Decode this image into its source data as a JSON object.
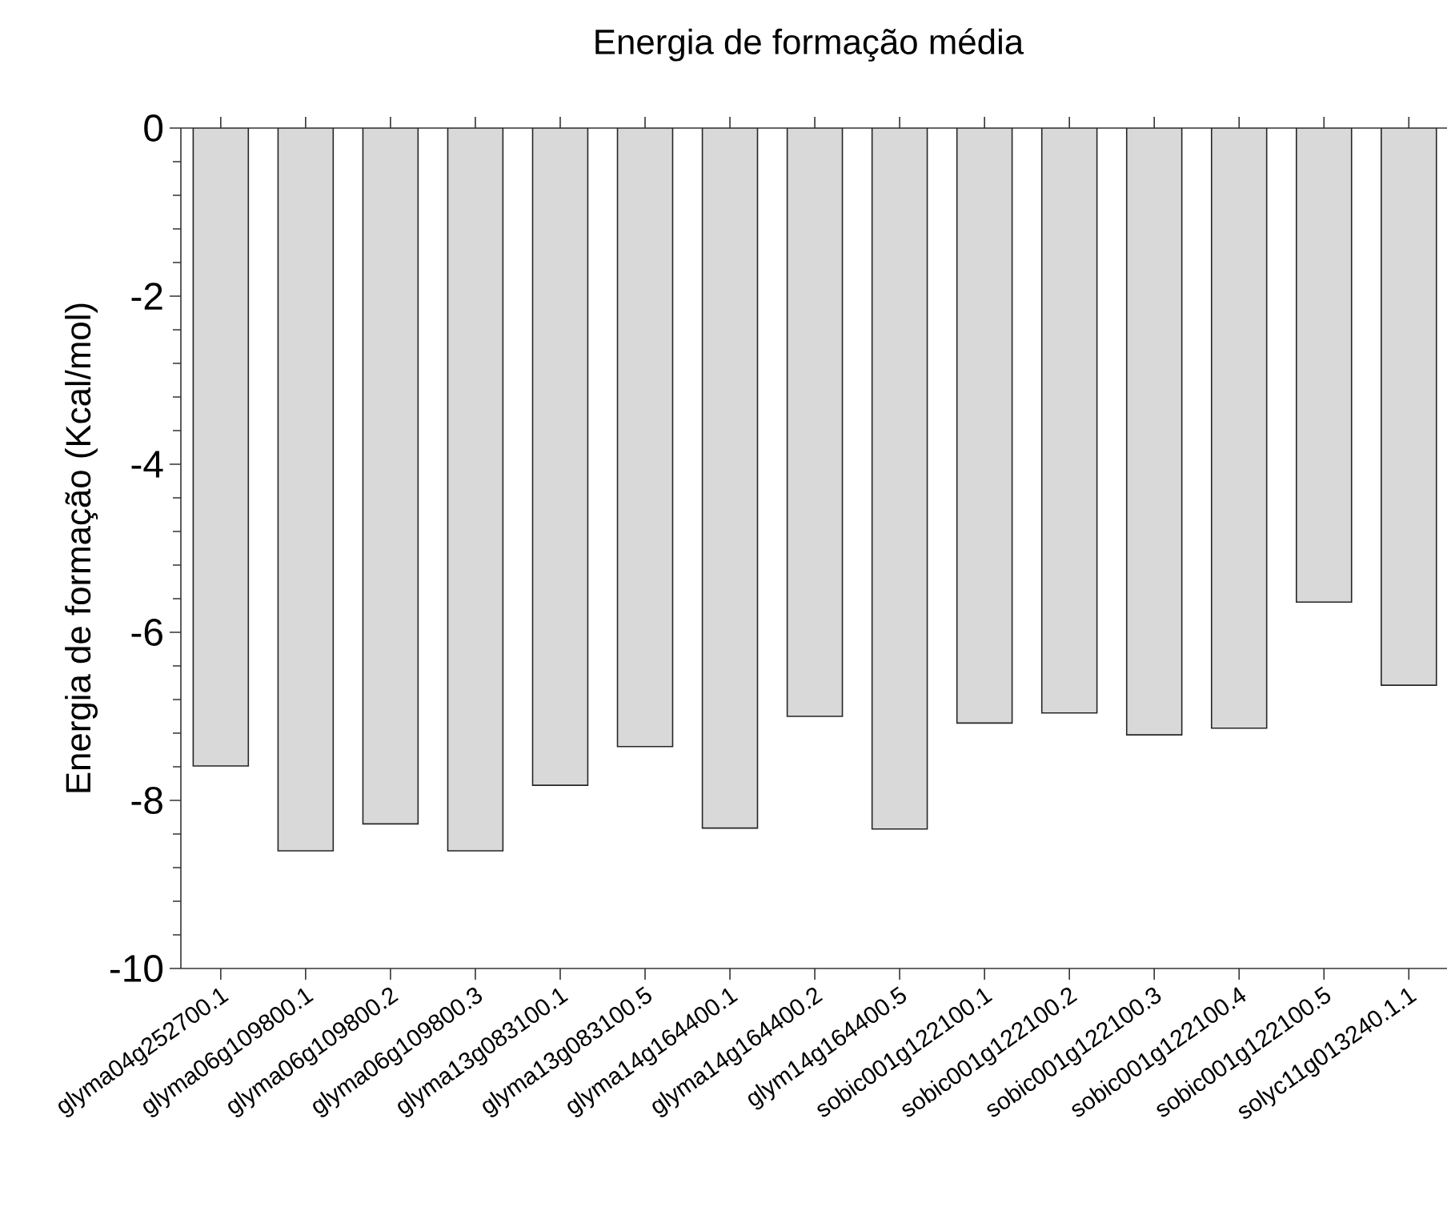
{
  "chart_data": {
    "type": "bar",
    "title": "Energia de formação média",
    "ylabel": "Energia de formação (Kcal/mol)",
    "categories": [
      "glyma04g252700.1",
      "glyma06g109800.1",
      "glyma06g109800.2",
      "glyma06g109800.3",
      "glyma13g083100.1",
      "glyma13g083100.5",
      "glyma14g164400.1",
      "glyma14g164400.2",
      "glym14g164400.5",
      "sobic001g122100.1",
      "sobic001g122100.2",
      "sobic001g122100.3",
      "sobic001g122100.4",
      "sobic001g122100.5",
      "solyc11g013240.1.1"
    ],
    "values": [
      -7.59,
      -8.6,
      -8.28,
      -8.6,
      -7.82,
      -7.36,
      -8.33,
      -7.0,
      -8.34,
      -7.08,
      -6.96,
      -7.22,
      -7.14,
      -5.64,
      -6.63
    ],
    "color": "#d9d9d9",
    "ylim": [
      -10,
      0
    ],
    "yticks": [
      0,
      -2,
      -4,
      -6,
      -8,
      -10
    ]
  }
}
